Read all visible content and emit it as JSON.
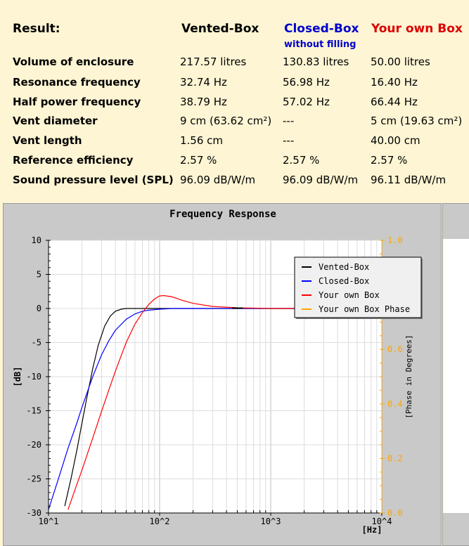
{
  "header": {
    "result_label": "Result:",
    "columns": [
      {
        "title": "Vented-Box",
        "color": "#000000"
      },
      {
        "title": "Closed-Box",
        "subtitle": "without filling",
        "color": "#0000cc"
      },
      {
        "title": "Your own Box",
        "color": "#dd0000"
      }
    ]
  },
  "rows": [
    {
      "label": "Volume of enclosure",
      "values": [
        "217.57 litres",
        "130.83 litres",
        "50.00 litres"
      ]
    },
    {
      "label": "Resonance frequency",
      "values": [
        "32.74 Hz",
        "56.98 Hz",
        "16.40 Hz"
      ]
    },
    {
      "label": "Half power frequency",
      "values": [
        "38.79 Hz",
        "57.02 Hz",
        "66.44 Hz"
      ]
    },
    {
      "label": "Vent diameter",
      "values": [
        "9 cm (63.62 cm²)",
        "---",
        "5 cm (19.63 cm²)"
      ]
    },
    {
      "label": "Vent length",
      "values": [
        "1.56 cm",
        "---",
        "40.00 cm"
      ]
    },
    {
      "label": "Reference efficiency",
      "values": [
        "2.57 %",
        "2.57 %",
        "2.57 %"
      ]
    },
    {
      "label": "Sound pressure level (SPL)",
      "values": [
        "96.09 dB/W/m",
        "96.09 dB/W/m",
        "96.11 dB/W/m"
      ]
    }
  ],
  "colors": {
    "background": "#fdf5d4",
    "panel": "#c9c9c9",
    "vented": "#000000",
    "closed": "#0000ff",
    "own": "#ff0000",
    "phase": "#ffa500"
  },
  "chart_data": {
    "type": "line",
    "title": "Frequency Response",
    "xlabel": "[Hz]",
    "ylabel": "[dB]",
    "y2label": "[Phase in Degrees]",
    "xscale": "log",
    "xlim": [
      10,
      10000
    ],
    "ylim": [
      -30,
      10
    ],
    "y2lim": [
      0.0,
      1.0
    ],
    "x_tick_labels": [
      "10^1",
      "10^2",
      "10^3",
      "10^4"
    ],
    "y_tick_labels": [
      "10",
      "5",
      "0",
      "-5",
      "-10",
      "-15",
      "-20",
      "-25",
      "-30"
    ],
    "y2_tick_labels": [
      "1.0",
      "0.8",
      "0.6",
      "0.4",
      "0.2",
      "0.0"
    ],
    "grid": true,
    "legend_position": "top-right",
    "series": [
      {
        "name": "Vented-Box",
        "color": "#000000",
        "x": [
          14,
          16,
          18,
          20,
          22,
          25,
          28,
          32,
          36,
          40,
          45,
          50,
          60,
          80,
          100,
          200,
          500,
          1000,
          3000,
          10000
        ],
        "y": [
          -29,
          -24.8,
          -20.8,
          -16.8,
          -13.3,
          -8.8,
          -5.4,
          -2.6,
          -1.1,
          -0.4,
          -0.1,
          0,
          0,
          0,
          0,
          0,
          0,
          0,
          0,
          0
        ]
      },
      {
        "name": "Closed-Box",
        "color": "#0000ff",
        "x": [
          10,
          12,
          15,
          18,
          20,
          25,
          30,
          35,
          40,
          50,
          60,
          70,
          80,
          100,
          130,
          200,
          500,
          1000,
          3000,
          10000
        ],
        "y": [
          -29.5,
          -25.5,
          -20.5,
          -16.8,
          -14.5,
          -10.0,
          -6.8,
          -4.7,
          -3.2,
          -1.6,
          -0.8,
          -0.4,
          -0.25,
          -0.1,
          0,
          0,
          0,
          0,
          0,
          0
        ],
        "closed_box_marker": true
      },
      {
        "name": "Your own Box",
        "color": "#ff0000",
        "x": [
          15,
          18,
          20,
          25,
          30,
          35,
          40,
          50,
          60,
          70,
          80,
          90,
          100,
          110,
          130,
          160,
          200,
          300,
          500,
          1000,
          3000,
          10000
        ],
        "y": [
          -29.5,
          -25.8,
          -23.7,
          -19.0,
          -15.1,
          -11.9,
          -9.2,
          -5.0,
          -2.3,
          -0.6,
          0.6,
          1.4,
          1.85,
          1.9,
          1.7,
          1.2,
          0.75,
          0.3,
          0.1,
          0,
          0,
          0
        ]
      },
      {
        "name": "Your own Box Phase",
        "color": "#ffa500",
        "x": [],
        "y": []
      }
    ]
  }
}
